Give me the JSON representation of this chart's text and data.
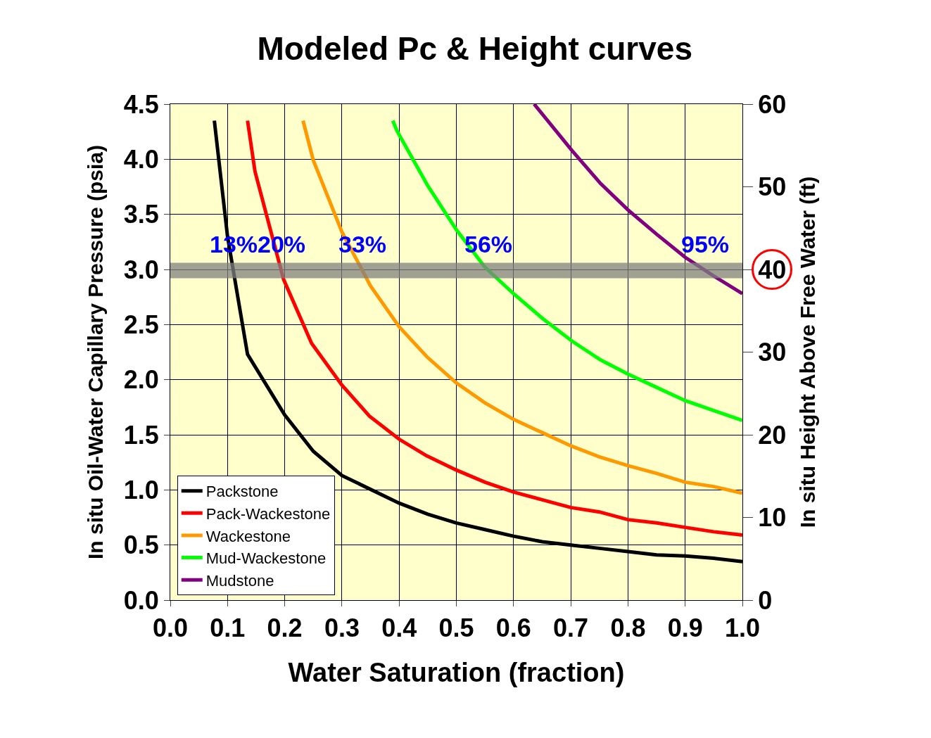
{
  "chart_data": {
    "type": "line",
    "title": "Modeled Pc & Height curves",
    "xlabel": "Water Saturation (fraction)",
    "ylabel": "In situ Oil-Water Capillary Pressure (psia)",
    "y2label": "In situ Height Above Free Water (ft)",
    "xlim": [
      0,
      1
    ],
    "xticks": [
      {
        "value": 0,
        "label": "0.0"
      },
      {
        "value": 0.1,
        "label": "0.1"
      },
      {
        "value": 0.2,
        "label": "0.2"
      },
      {
        "value": 0.3,
        "label": "0.3"
      },
      {
        "value": 0.4,
        "label": "0.4"
      },
      {
        "value": 0.5,
        "label": "0.5"
      },
      {
        "value": 0.6,
        "label": "0.6"
      },
      {
        "value": 0.7,
        "label": "0.7"
      },
      {
        "value": 0.8,
        "label": "0.8"
      },
      {
        "value": 0.9,
        "label": "0.9"
      },
      {
        "value": 1,
        "label": "1.0"
      }
    ],
    "ylim": [
      0,
      4.5
    ],
    "yticks": [
      {
        "value": 0,
        "label": "0.0"
      },
      {
        "value": 0.5,
        "label": "0.5"
      },
      {
        "value": 1,
        "label": "1.0"
      },
      {
        "value": 1.5,
        "label": "1.5"
      },
      {
        "value": 2,
        "label": "2.0"
      },
      {
        "value": 2.5,
        "label": "2.5"
      },
      {
        "value": 3,
        "label": "3.0"
      },
      {
        "value": 3.5,
        "label": "3.5"
      },
      {
        "value": 4,
        "label": "4.0"
      },
      {
        "value": 4.5,
        "label": "4.5"
      }
    ],
    "y2lim": [
      0,
      60
    ],
    "y2ticks": [
      0,
      10,
      20,
      30,
      40,
      50,
      60
    ],
    "grid": true,
    "legend": "bottom left",
    "marker": "none",
    "line_style": "solid",
    "series": [
      {
        "name": "Packstone",
        "color": "#000000",
        "x": [
          0.077,
          0.1,
          0.135,
          0.2,
          0.25,
          0.3,
          0.4,
          0.45,
          0.5,
          0.55,
          0.6,
          0.65,
          0.7,
          0.75,
          0.8,
          0.85,
          0.9,
          0.95,
          1.0
        ],
        "values": [
          4.35,
          3.3,
          2.23,
          1.68,
          1.35,
          1.13,
          0.88,
          0.78,
          0.7,
          0.64,
          0.58,
          0.53,
          0.5,
          0.47,
          0.44,
          0.41,
          0.4,
          0.38,
          0.35
        ]
      },
      {
        "name": "Pack-Wackestone",
        "color": "#ff0000",
        "x": [
          0.135,
          0.148,
          0.198,
          0.247,
          0.3,
          0.348,
          0.4,
          0.448,
          0.5,
          0.55,
          0.6,
          0.65,
          0.7,
          0.75,
          0.8,
          0.85,
          0.9,
          0.95,
          1.0
        ],
        "values": [
          4.35,
          3.89,
          2.91,
          2.33,
          1.95,
          1.67,
          1.46,
          1.31,
          1.18,
          1.07,
          0.98,
          0.91,
          0.84,
          0.8,
          0.73,
          0.7,
          0.66,
          0.62,
          0.59
        ]
      },
      {
        "name": "Wackestone",
        "color": "#ff9900",
        "x": [
          0.232,
          0.25,
          0.3,
          0.35,
          0.4,
          0.45,
          0.5,
          0.55,
          0.6,
          0.65,
          0.7,
          0.75,
          0.8,
          0.85,
          0.9,
          0.95,
          1.0
        ],
        "values": [
          4.35,
          3.99,
          3.34,
          2.85,
          2.48,
          2.2,
          1.97,
          1.79,
          1.64,
          1.52,
          1.4,
          1.3,
          1.22,
          1.15,
          1.07,
          1.03,
          0.97
        ]
      },
      {
        "name": "Mud-Wackestone",
        "color": "#00ff00",
        "x": [
          0.389,
          0.396,
          0.45,
          0.5,
          0.55,
          0.6,
          0.652,
          0.702,
          0.752,
          0.8,
          0.85,
          0.9,
          0.95,
          1.0
        ],
        "values": [
          4.35,
          4.26,
          3.76,
          3.36,
          3.02,
          2.78,
          2.55,
          2.35,
          2.18,
          2.05,
          1.93,
          1.81,
          1.72,
          1.63
        ]
      },
      {
        "name": "Mudstone",
        "color": "#800080",
        "x": [
          0.636,
          0.702,
          0.752,
          0.8,
          0.85,
          0.9,
          0.95,
          1.0
        ],
        "values": [
          4.5,
          4.08,
          3.78,
          3.54,
          3.32,
          3.11,
          2.94,
          2.78
        ]
      }
    ],
    "bands": [
      {
        "axis": "y",
        "from": 2.92,
        "to": 3.06,
        "color": "#808080"
      }
    ],
    "annotations": [
      "13%",
      "20%",
      "33%",
      "56%",
      "95%"
    ]
  }
}
